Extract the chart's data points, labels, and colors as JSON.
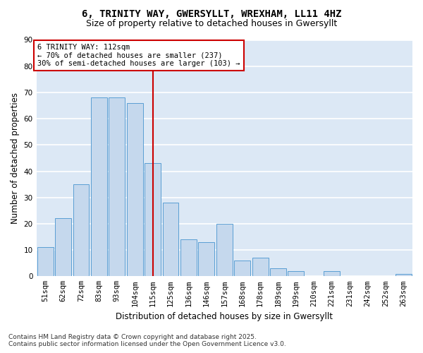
{
  "title_line1": "6, TRINITY WAY, GWERSYLLT, WREXHAM, LL11 4HZ",
  "title_line2": "Size of property relative to detached houses in Gwersyllt",
  "xlabel": "Distribution of detached houses by size in Gwersyllt",
  "ylabel": "Number of detached properties",
  "categories": [
    "51sqm",
    "62sqm",
    "72sqm",
    "83sqm",
    "93sqm",
    "104sqm",
    "115sqm",
    "125sqm",
    "136sqm",
    "146sqm",
    "157sqm",
    "168sqm",
    "178sqm",
    "189sqm",
    "199sqm",
    "210sqm",
    "221sqm",
    "231sqm",
    "242sqm",
    "252sqm",
    "263sqm"
  ],
  "values": [
    11,
    22,
    35,
    68,
    68,
    66,
    43,
    28,
    14,
    13,
    20,
    6,
    7,
    3,
    2,
    0,
    2,
    0,
    0,
    0,
    1
  ],
  "bar_color": "#c5d8ed",
  "bar_edge_color": "#5a9fd4",
  "vline_x_index": 6,
  "vline_color": "#cc0000",
  "annotation_line1": "6 TRINITY WAY: 112sqm",
  "annotation_line2": "← 70% of detached houses are smaller (237)",
  "annotation_line3": "30% of semi-detached houses are larger (103) →",
  "annotation_box_color": "#ffffff",
  "annotation_box_edge_color": "#cc0000",
  "ylim": [
    0,
    90
  ],
  "yticks": [
    0,
    10,
    20,
    30,
    40,
    50,
    60,
    70,
    80,
    90
  ],
  "background_color": "#dce8f5",
  "grid_color": "#ffffff",
  "footer_line1": "Contains HM Land Registry data © Crown copyright and database right 2025.",
  "footer_line2": "Contains public sector information licensed under the Open Government Licence v3.0.",
  "title_fontsize": 10,
  "subtitle_fontsize": 9,
  "axis_label_fontsize": 8.5,
  "tick_fontsize": 7.5,
  "annotation_fontsize": 7.5,
  "footer_fontsize": 6.5
}
